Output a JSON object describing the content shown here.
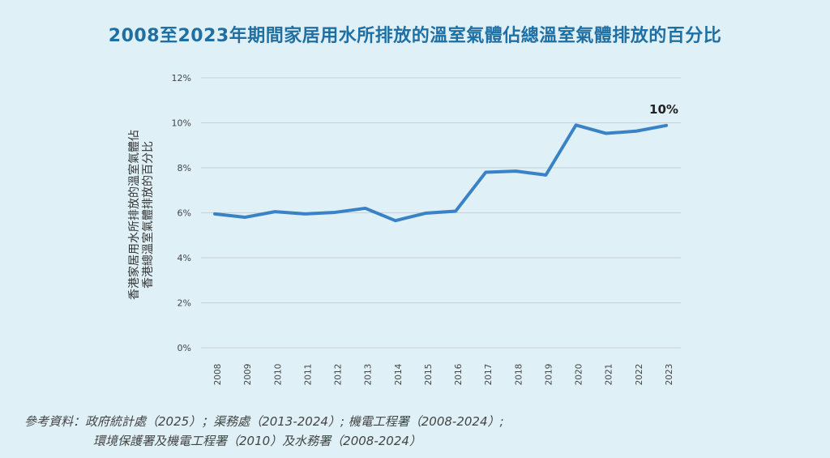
{
  "chart_data": {
    "type": "line",
    "title": "2008至2023年期間家居用水所排放的溫室氣體佔總溫室氣體排放的百分比",
    "ylabel_lines": [
      "香港家居用水所排放的溫室氣體佔",
      "香港總溫室氣體排放的百分比"
    ],
    "xlabel": "",
    "x": [
      "2008",
      "2009",
      "2010",
      "2011",
      "2012",
      "2013",
      "2014",
      "2015",
      "2016",
      "2017",
      "2018",
      "2019",
      "2020",
      "2021",
      "2022",
      "2023"
    ],
    "series": [
      {
        "values": [
          5.95,
          5.8,
          6.05,
          5.95,
          6.02,
          6.2,
          5.65,
          5.98,
          6.07,
          7.8,
          7.85,
          7.68,
          9.9,
          9.53,
          9.63,
          9.88
        ]
      }
    ],
    "ylim": [
      0,
      12
    ],
    "yticks": [
      0,
      2,
      4,
      6,
      8,
      10,
      12
    ],
    "ytick_labels": [
      "0%",
      "2%",
      "4%",
      "6%",
      "8%",
      "10%",
      "12%"
    ],
    "annotation": {
      "text": "10%",
      "x": "2023"
    },
    "grid": true,
    "line_color": "#3a82c6"
  },
  "source": {
    "line1": "參考資料：政府統計處（2025）；渠務處（2013-2024）; 機電工程署（2008-2024）;",
    "line2": "環境保護署及機電工程署（2010）及水務署（2008-2024）"
  }
}
